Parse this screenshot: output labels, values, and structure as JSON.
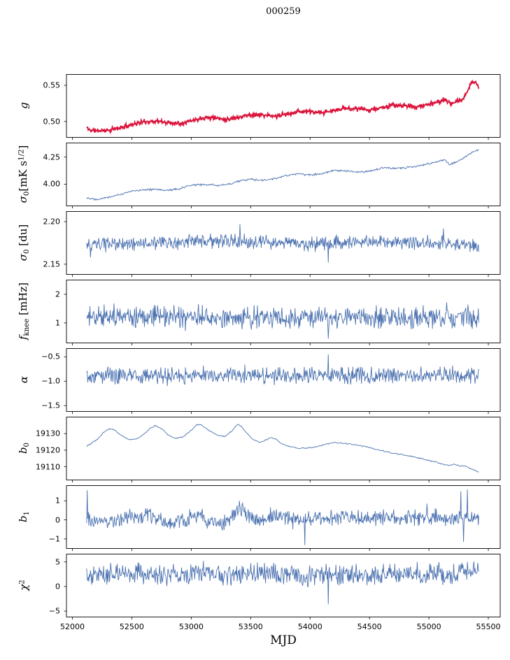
{
  "chart_data": {
    "type": "line",
    "title": "000259",
    "xlabel": "MJD",
    "legend": "none",
    "grid": false,
    "panels_share_x": true,
    "xlim": [
      51950,
      55600
    ],
    "x_range_data": [
      52120,
      55420
    ],
    "x_ticks": {
      "values": [
        52000,
        52500,
        53000,
        53500,
        54000,
        54500,
        55000,
        55500
      ],
      "labels": [
        "52000",
        "52500",
        "53000",
        "53500",
        "54000",
        "54500",
        "55000",
        "55500"
      ]
    },
    "colors": {
      "series_blue": "#4c72b0",
      "series_red": "#dc143c",
      "series_red_dark": "#8b0000",
      "axes": "#000000"
    },
    "panels": [
      {
        "id": "g",
        "label_segments": [
          {
            "t": "g",
            "s": "i"
          }
        ],
        "color": "#dc143c",
        "lw": 1.8,
        "underlay": true,
        "underlay_color": "#8b0000",
        "ylim": [
          0.478,
          0.565
        ],
        "yticks": {
          "values": [
            0.5,
            0.55
          ],
          "labels": [
            "0.50",
            "0.55"
          ]
        },
        "n": 750,
        "noise": 0.004,
        "seed": 11,
        "anchors": {
          "x": [
            52120,
            52140,
            52200,
            52300,
            52400,
            52500,
            52600,
            52700,
            52800,
            52900,
            53000,
            53100,
            53200,
            53300,
            53400,
            53500,
            53600,
            53700,
            53800,
            53900,
            54000,
            54100,
            54200,
            54300,
            54400,
            54500,
            54600,
            54700,
            54800,
            54900,
            55000,
            55080,
            55120,
            55160,
            55200,
            55260,
            55300,
            55340,
            55370,
            55400,
            55420
          ],
          "y": [
            0.492,
            0.4885,
            0.4872,
            0.4878,
            0.491,
            0.496,
            0.4995,
            0.5005,
            0.4985,
            0.4975,
            0.501,
            0.5055,
            0.505,
            0.503,
            0.506,
            0.5095,
            0.509,
            0.507,
            0.51,
            0.514,
            0.5135,
            0.5115,
            0.515,
            0.5185,
            0.5175,
            0.516,
            0.519,
            0.5225,
            0.5215,
            0.52,
            0.524,
            0.527,
            0.53,
            0.527,
            0.525,
            0.529,
            0.533,
            0.548,
            0.555,
            0.553,
            0.547
          ]
        },
        "spikes": []
      },
      {
        "id": "sigma0-mk",
        "label_segments": [
          {
            "t": "σ",
            "s": "i"
          },
          {
            "t": "0",
            "s": "sub"
          },
          {
            "t": "[mK s",
            "s": "n"
          },
          {
            "t": "1/2",
            "s": "sup"
          },
          {
            "t": "]",
            "s": "n"
          }
        ],
        "color": "#4c72b0",
        "lw": 0.9,
        "ylim": [
          3.8,
          4.38
        ],
        "yticks": {
          "values": [
            4.0,
            4.25
          ],
          "labels": [
            "4.00",
            "4.25"
          ]
        },
        "n": 600,
        "noise": 0.012,
        "seed": 22,
        "anchors": {
          "x": [
            52120,
            52200,
            52300,
            52400,
            52500,
            52600,
            52700,
            52800,
            52900,
            53000,
            53100,
            53200,
            53300,
            53400,
            53500,
            53600,
            53700,
            53800,
            53900,
            54000,
            54100,
            54200,
            54300,
            54400,
            54500,
            54600,
            54700,
            54800,
            54900,
            55000,
            55080,
            55130,
            55170,
            55220,
            55280,
            55330,
            55380,
            55420
          ],
          "y": [
            3.875,
            3.862,
            3.88,
            3.905,
            3.935,
            3.952,
            3.95,
            3.945,
            3.958,
            3.99,
            3.998,
            3.99,
            3.995,
            4.03,
            4.045,
            4.035,
            4.05,
            4.08,
            4.095,
            4.085,
            4.1,
            4.125,
            4.12,
            4.11,
            4.12,
            4.15,
            4.145,
            4.15,
            4.17,
            4.19,
            4.21,
            4.23,
            4.18,
            4.2,
            4.23,
            4.27,
            4.3,
            4.315
          ]
        },
        "spikes": []
      },
      {
        "id": "sigma0-du",
        "label_segments": [
          {
            "t": "σ",
            "s": "i"
          },
          {
            "t": "0",
            "s": "sub"
          },
          {
            "t": " [du]",
            "s": "n"
          }
        ],
        "color": "#4c72b0",
        "lw": 0.9,
        "ylim": [
          2.138,
          2.212
        ],
        "yticks": {
          "values": [
            2.15,
            2.2
          ],
          "labels": [
            "2.15",
            "2.20"
          ]
        },
        "n": 720,
        "noise": 0.01,
        "seed": 33,
        "anchors": {
          "x": [
            52120,
            52400,
            52800,
            53200,
            53600,
            54000,
            54400,
            54800,
            55200,
            55420
          ],
          "y": [
            2.172,
            2.174,
            2.175,
            2.177,
            2.176,
            2.174,
            2.176,
            2.176,
            2.174,
            2.172
          ]
        },
        "spikes": [
          [
            52150,
            2.158
          ],
          [
            53410,
            2.197
          ],
          [
            54155,
            2.152
          ],
          [
            55120,
            2.192
          ]
        ]
      },
      {
        "id": "fknee",
        "label_segments": [
          {
            "t": "f",
            "s": "i"
          },
          {
            "t": "knee",
            "s": "sub"
          },
          {
            "t": " [mHz]",
            "s": "n"
          }
        ],
        "color": "#4c72b0",
        "lw": 0.9,
        "ylim": [
          0.3,
          2.5
        ],
        "yticks": {
          "values": [
            1,
            2
          ],
          "labels": [
            "1",
            "2"
          ]
        },
        "n": 720,
        "noise": 0.45,
        "seed": 44,
        "anchors": {
          "x": [
            52120,
            53000,
            54000,
            55000,
            55420
          ],
          "y": [
            1.22,
            1.2,
            1.18,
            1.2,
            1.18
          ]
        },
        "spikes": [
          [
            52350,
            1.68
          ],
          [
            52700,
            1.6
          ],
          [
            52950,
            0.72
          ],
          [
            53060,
            1.66
          ],
          [
            53530,
            1.62
          ],
          [
            54155,
            0.45
          ],
          [
            54600,
            1.55
          ],
          [
            54850,
            0.78
          ],
          [
            55150,
            1.72
          ],
          [
            55330,
            1.64
          ]
        ]
      },
      {
        "id": "alpha",
        "label_segments": [
          {
            "t": "α",
            "s": "i"
          }
        ],
        "color": "#4c72b0",
        "lw": 0.9,
        "ylim": [
          -1.62,
          -0.33
        ],
        "yticks": {
          "values": [
            -1.5,
            -1.0,
            -0.5
          ],
          "labels": [
            "−1.5",
            "−1.0",
            "−0.5"
          ]
        },
        "n": 720,
        "noise": 0.2,
        "seed": 55,
        "anchors": {
          "x": [
            52120,
            53000,
            54000,
            55000,
            55420
          ],
          "y": [
            -0.88,
            -0.885,
            -0.88,
            -0.875,
            -0.88
          ]
        },
        "spikes": [
          [
            52300,
            -0.7
          ],
          [
            52800,
            -1.1
          ],
          [
            53100,
            -0.68
          ],
          [
            53450,
            -0.66
          ],
          [
            53700,
            -1.08
          ],
          [
            54155,
            -0.45
          ],
          [
            54500,
            -1.05
          ],
          [
            55200,
            -0.68
          ],
          [
            55350,
            -1.05
          ]
        ]
      },
      {
        "id": "b0",
        "label_segments": [
          {
            "t": "b",
            "s": "i"
          },
          {
            "t": "0",
            "s": "sub"
          }
        ],
        "color": "#4c72b0",
        "lw": 0.9,
        "ylim": [
          19102,
          19140
        ],
        "yticks": {
          "values": [
            19110,
            19120,
            19130
          ],
          "labels": [
            "19110",
            "19120",
            "19130"
          ]
        },
        "n": 450,
        "noise": 0.45,
        "seed": 66,
        "anchors": {
          "x": [
            52120,
            52200,
            52260,
            52310,
            52360,
            52420,
            52480,
            52540,
            52600,
            52660,
            52700,
            52750,
            52810,
            52870,
            52930,
            53000,
            53050,
            53090,
            53150,
            53220,
            53280,
            53340,
            53390,
            53420,
            53470,
            53520,
            53570,
            53630,
            53670,
            53710,
            53770,
            53840,
            53910,
            53980,
            54060,
            54140,
            54210,
            54280,
            54360,
            54440,
            54520,
            54600,
            54680,
            54760,
            54840,
            54920,
            55000,
            55060,
            55120,
            55170,
            55210,
            55260,
            55300,
            55340,
            55380,
            55420
          ],
          "y": [
            19122.5,
            19126,
            19130.5,
            19133,
            19132,
            19128.5,
            19126.5,
            19126.8,
            19129.5,
            19133.5,
            19134.8,
            19133,
            19129,
            19127.2,
            19128,
            19132,
            19135.5,
            19135,
            19132,
            19129,
            19128.2,
            19131.5,
            19135.8,
            19134.5,
            19130,
            19126.5,
            19124.8,
            19126.2,
            19127.8,
            19126.5,
            19123.5,
            19122,
            19121,
            19121.3,
            19122,
            19123.8,
            19124.6,
            19124.2,
            19123.5,
            19122.5,
            19121.2,
            19119.8,
            19118.5,
            19117.4,
            19116.5,
            19115.2,
            19113.8,
            19112.8,
            19111.4,
            19110.8,
            19111.6,
            19110.2,
            19110.6,
            19109,
            19108,
            19107
          ]
        },
        "spikes": []
      },
      {
        "id": "b1",
        "label_segments": [
          {
            "t": "b",
            "s": "i"
          },
          {
            "t": "1",
            "s": "sub"
          }
        ],
        "color": "#4c72b0",
        "lw": 0.9,
        "ylim": [
          -1.5,
          1.8
        ],
        "yticks": {
          "values": [
            -1,
            0,
            1
          ],
          "labels": [
            "−1",
            "0",
            "1"
          ]
        },
        "n": 720,
        "noise": 0.5,
        "seed": 77,
        "anchors": {
          "x": [
            52120,
            52250,
            52400,
            52550,
            52650,
            52750,
            52850,
            52950,
            53050,
            53150,
            53250,
            53350,
            53450,
            53550,
            53650,
            53750,
            53850,
            53950,
            54050,
            54150,
            54300,
            54500,
            54700,
            54900,
            55100,
            55250,
            55420
          ],
          "y": [
            0.1,
            -0.05,
            0.05,
            0.15,
            0.3,
            -0.1,
            -0.25,
            0.0,
            0.3,
            -0.1,
            -0.3,
            0.35,
            0.45,
            -0.15,
            0.15,
            0.3,
            0.0,
            -0.15,
            0.15,
            0.1,
            0.1,
            0.08,
            0.1,
            0.1,
            0.15,
            0.05,
            0.05
          ]
        },
        "spikes": [
          [
            52123,
            1.55
          ],
          [
            53405,
            1.0
          ],
          [
            53955,
            -1.32
          ],
          [
            54985,
            0.85
          ],
          [
            55270,
            1.5
          ],
          [
            55290,
            -1.15
          ],
          [
            55325,
            1.6
          ]
        ]
      },
      {
        "id": "chi2",
        "label_segments": [
          {
            "t": "χ",
            "s": "i"
          },
          {
            "t": "2",
            "s": "sup"
          }
        ],
        "color": "#4c72b0",
        "lw": 0.9,
        "ylim": [
          -6.2,
          6.6
        ],
        "yticks": {
          "values": [
            -5,
            0,
            5
          ],
          "labels": [
            "−5",
            "0",
            "5"
          ]
        },
        "n": 720,
        "noise": 2.6,
        "seed": 88,
        "anchors": {
          "x": [
            52120,
            52400,
            52700,
            53000,
            53300,
            53600,
            53900,
            54200,
            54500,
            54800,
            55100,
            55420
          ],
          "y": [
            2.3,
            2.6,
            2.4,
            2.6,
            2.5,
            2.7,
            2.3,
            2.5,
            2.4,
            2.6,
            2.5,
            3.0
          ]
        },
        "spikes": [
          [
            52550,
            4.9
          ],
          [
            53100,
            5.2
          ],
          [
            54155,
            -3.6
          ],
          [
            54900,
            5.0
          ],
          [
            55380,
            5.1
          ]
        ]
      }
    ]
  }
}
